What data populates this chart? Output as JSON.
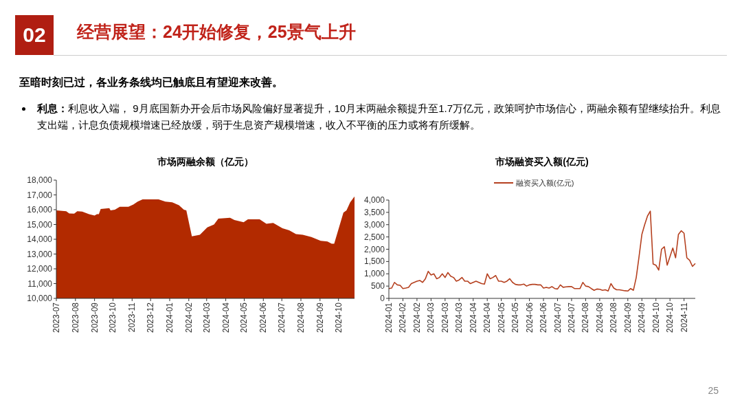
{
  "chart_data": [
    {
      "type": "other",
      "title": "经营展望：24开始修复，25景气上升",
      "subtitle": "至暗时刻已过，各业务条线均已触底且有望迎来改善。",
      "annotations": [
        "02",
        "**利息：**利息收入端， 9月底国新办开会后市场风险偏好显著提升，10月末两融余额提升至1.7万亿元，政策呵护市场信心，两融余额有望继续抬升。利息支出端，计息负债规模增速已经放缓，弱于生息资产规模增速，收入不平衡的压力或将有所缓解。",
        "25"
      ]
    },
    {
      "type": "area",
      "title": "市场两融余额（亿元）",
      "color": "#b22a00",
      "x": [
        "2023-07-01",
        "2023-07-17",
        "2023-07-22",
        "2023-07-30",
        "2023-08-04",
        "2023-08-12",
        "2023-08-23",
        "2023-09-01",
        "2023-09-05",
        "2023-09-08",
        "2023-09-11",
        "2023-09-25",
        "2023-09-27",
        "2023-10-04",
        "2023-10-12",
        "2023-10-26",
        "2023-11-03",
        "2023-11-10",
        "2023-11-18",
        "2023-12-03",
        "2023-12-14",
        "2023-12-25",
        "2024-01-05",
        "2024-01-16",
        "2024-01-24",
        "2024-01-28",
        "2024-02-06",
        "2024-02-19",
        "2024-03-02",
        "2024-03-13",
        "2024-03-20",
        "2024-04-08",
        "2024-04-15",
        "2024-04-30",
        "2024-05-07",
        "2024-05-26",
        "2024-06-06",
        "2024-06-17",
        "2024-07-02",
        "2024-07-13",
        "2024-07-24",
        "2024-08-04",
        "2024-08-18",
        "2024-09-02",
        "2024-09-13",
        "2024-09-20",
        "2024-09-24",
        "2024-10-09",
        "2024-10-14",
        "2024-10-20",
        "2024-10-27"
      ],
      "values": [
        15950,
        15900,
        15750,
        15730,
        15900,
        15870,
        15700,
        15600,
        15700,
        15700,
        16050,
        16100,
        15950,
        16000,
        16200,
        16200,
        16350,
        16550,
        16700,
        16700,
        16700,
        16550,
        16500,
        16300,
        16000,
        15950,
        14200,
        14300,
        14800,
        15000,
        15400,
        15450,
        15300,
        15150,
        15350,
        15350,
        15050,
        15100,
        14750,
        14600,
        14350,
        14300,
        14150,
        13900,
        13850,
        13700,
        13700,
        15800,
        15950,
        16500,
        16900
      ],
      "xlim": [
        "2023-07-01",
        "2024-10-27"
      ],
      "xticks": [
        "2023-07",
        "2023-08",
        "2023-09",
        "2023-10",
        "2023-11",
        "2023-12",
        "2024-01",
        "2024-02",
        "2024-03",
        "2024-04",
        "2024-05",
        "2024-06",
        "2024-07",
        "2024-08",
        "2024-09",
        "2024-10"
      ],
      "ylim": [
        10000,
        18000
      ],
      "yticks": [
        {
          "value": 10000,
          "label": "10,000"
        },
        {
          "value": 11000,
          "label": "11,000"
        },
        {
          "value": 12000,
          "label": "12,000"
        },
        {
          "value": 13000,
          "label": "13,000"
        },
        {
          "value": 14000,
          "label": "14,000"
        },
        {
          "value": 15000,
          "label": "15,000"
        },
        {
          "value": 16000,
          "label": "16,000"
        },
        {
          "value": 17000,
          "label": "17,000"
        },
        {
          "value": 18000,
          "label": "18,000"
        }
      ]
    },
    {
      "type": "line",
      "title": "市场融资买入额(亿元)",
      "legend": "top",
      "categories": [
        "2024-01",
        null,
        null,
        null,
        null,
        "2024-02",
        null,
        null,
        null,
        null,
        "2024-02",
        null,
        null,
        null,
        null,
        "2024-03",
        null,
        null,
        null,
        null,
        "2024-03",
        null,
        null,
        null,
        null,
        "2024-03",
        null,
        null,
        null,
        null,
        "2024-04",
        null,
        null,
        null,
        null,
        "2024-04",
        null,
        null,
        null,
        null,
        "2024-05",
        null,
        null,
        null,
        null,
        "2024-05",
        null,
        null,
        null,
        null,
        "2024-06",
        null,
        null,
        null,
        null,
        "2024-06",
        null,
        null,
        null,
        null,
        "2024-07",
        null,
        null,
        null,
        null,
        "2024-07",
        null,
        null,
        null,
        null,
        "2024-08",
        null,
        null,
        null,
        null,
        "2024-08",
        null,
        null,
        null,
        null,
        "2024-08",
        null,
        null,
        null,
        null,
        "2024-09",
        null,
        null,
        null,
        null,
        "2024-09",
        null,
        null,
        null,
        null,
        "2024-10",
        null,
        null,
        null,
        null,
        "2024-10",
        null,
        null,
        null,
        null,
        "2024-11",
        null,
        null,
        null,
        null
      ],
      "series": [
        {
          "name": "融资买入额(亿元)",
          "color": "#b5401f",
          "values": [
            400,
            420,
            650,
            550,
            530,
            400,
            420,
            450,
            600,
            650,
            700,
            730,
            650,
            800,
            1100,
            950,
            1000,
            800,
            850,
            1000,
            850,
            1050,
            900,
            850,
            700,
            750,
            850,
            700,
            700,
            600,
            650,
            700,
            650,
            600,
            580,
            1000,
            800,
            850,
            930,
            700,
            700,
            650,
            700,
            800,
            650,
            570,
            550,
            550,
            580,
            500,
            550,
            570,
            570,
            550,
            550,
            420,
            450,
            420,
            480,
            400,
            380,
            550,
            450,
            470,
            480,
            480,
            400,
            400,
            400,
            650,
            500,
            480,
            400,
            330,
            380,
            370,
            330,
            350,
            300,
            600,
            420,
            350,
            350,
            330,
            310,
            300,
            400,
            330,
            850,
            1700,
            2600,
            3000,
            3350,
            3550,
            1400,
            1350,
            1150,
            2000,
            2100,
            1350,
            1700,
            2050,
            1650,
            2600,
            2750,
            2650,
            1650,
            1550,
            1300,
            1420
          ]
        }
      ],
      "ylim": [
        0,
        4000
      ],
      "yticks": [
        0,
        500,
        {
          "value": 1000,
          "label": "1,000"
        },
        {
          "value": 1500,
          "label": "1,500"
        },
        {
          "value": 2000,
          "label": "2,000"
        },
        {
          "value": 2500,
          "label": "2,500"
        },
        {
          "value": 3000,
          "label": "3,000"
        },
        {
          "value": 3500,
          "label": "3,500"
        },
        {
          "value": 4000,
          "label": "4,000"
        }
      ]
    }
  ]
}
